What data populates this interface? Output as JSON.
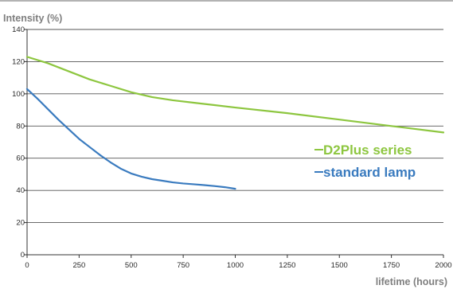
{
  "chart_data": {
    "type": "line",
    "title": "",
    "ylabel": "Intensity (%)",
    "xlabel": "lifetime (hours)",
    "xlim": [
      0,
      2000
    ],
    "ylim": [
      0,
      140
    ],
    "xticks": [
      0,
      250,
      500,
      750,
      1000,
      1250,
      1500,
      1750,
      2000
    ],
    "yticks": [
      0,
      20,
      40,
      60,
      80,
      100,
      120,
      140
    ],
    "grid": "horizontal",
    "legend_placement": "right",
    "series": [
      {
        "name": "D2Plus series",
        "color": "#8dc63f",
        "x": [
          0,
          100,
          200,
          300,
          400,
          500,
          600,
          700,
          800,
          900,
          1000,
          1250,
          1500,
          1750,
          2000
        ],
        "y": [
          123,
          119,
          114,
          109,
          105,
          101,
          98,
          96,
          94.5,
          93,
          91.5,
          88,
          84,
          80,
          76
        ]
      },
      {
        "name": "standard lamp",
        "color": "#3a7bbf",
        "x": [
          0,
          50,
          100,
          150,
          200,
          250,
          300,
          350,
          400,
          450,
          500,
          550,
          600,
          650,
          700,
          750,
          800,
          850,
          900,
          950,
          1000
        ],
        "y": [
          103,
          97,
          90.5,
          84,
          78,
          72,
          67,
          62,
          57.5,
          53.5,
          50.5,
          48.5,
          47,
          46,
          45,
          44.3,
          43.8,
          43.3,
          42.7,
          42,
          41
        ]
      }
    ]
  }
}
